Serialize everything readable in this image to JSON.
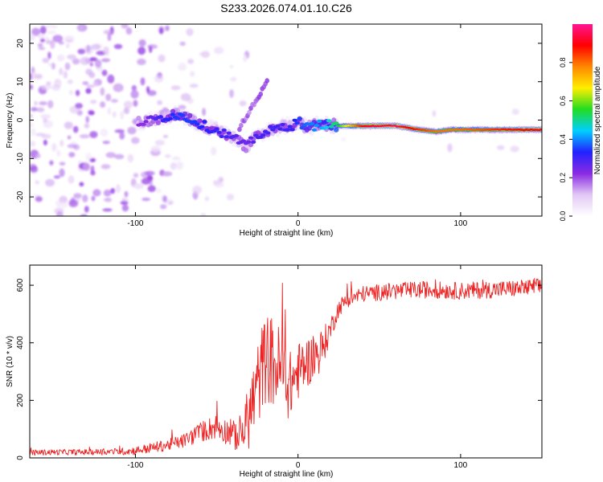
{
  "title": "S233.2026.074.01.10.C26",
  "chart_data": [
    {
      "type": "heatmap",
      "xlabel": "Height of straight line (km)",
      "ylabel": "Frequency (Hz)",
      "xlim": [
        -165,
        150
      ],
      "ylim": [
        -25,
        25
      ],
      "xticks": [
        -100,
        0,
        100
      ],
      "yticks": [
        -20,
        -10,
        0,
        10,
        20
      ],
      "colorbar": {
        "label": "Normalized spectral amplitude",
        "range": [
          0,
          1
        ],
        "ticks": [
          0.0,
          0.2,
          0.4,
          0.6,
          0.8
        ],
        "tick_labels": [
          "0.0",
          "0.2",
          "0.4",
          "0.6",
          "0.8"
        ],
        "colors": [
          "#ffffff",
          "#e2c8f5",
          "#8a2be2",
          "#2222ff",
          "#00cfff",
          "#22dd22",
          "#ffee00",
          "#ff8800",
          "#ff0000",
          "#ff1493"
        ]
      },
      "ridge": {
        "x": [
          -95,
          -85,
          -75,
          -65,
          -55,
          -45,
          -38,
          -32,
          -25,
          -15,
          -8,
          -3,
          0,
          5,
          15,
          25,
          40,
          60,
          75,
          85,
          95,
          110,
          130,
          150
        ],
        "freq_hz": [
          -0.5,
          0.5,
          1.5,
          0,
          -2,
          -3.5,
          -5,
          -7,
          -4,
          -2.5,
          -1.5,
          -1.5,
          0,
          -2,
          -1,
          -1.5,
          -1.5,
          -1.5,
          -2.5,
          -3,
          -2.5,
          -2.5,
          -2.5,
          -2.5
        ],
        "amplitude": [
          0.22,
          0.3,
          0.35,
          0.35,
          0.32,
          0.3,
          0.28,
          0.25,
          0.3,
          0.3,
          0.3,
          0.32,
          0.35,
          0.38,
          0.42,
          0.55,
          0.9,
          0.95,
          0.85,
          0.8,
          0.8,
          0.82,
          0.88,
          0.9
        ]
      }
    },
    {
      "type": "line",
      "xlabel": "Height of straight line (km)",
      "ylabel": "SNR (10 * v/v)",
      "xlim": [
        -165,
        150
      ],
      "ylim": [
        0,
        670
      ],
      "xticks": [
        -100,
        0,
        100
      ],
      "yticks": [
        0,
        200,
        400,
        600
      ],
      "color": "#ee2222",
      "series": [
        {
          "name": "SNR",
          "x": [
            -165,
            -150,
            -130,
            -110,
            -100,
            -90,
            -80,
            -70,
            -60,
            -55,
            -50,
            -45,
            -40,
            -35,
            -30,
            -25,
            -20,
            -15,
            -10,
            -5,
            0,
            5,
            10,
            15,
            20,
            25,
            30,
            40,
            60,
            80,
            100,
            120,
            140,
            150
          ],
          "y": [
            18,
            20,
            20,
            22,
            25,
            35,
            45,
            60,
            90,
            100,
            110,
            95,
            80,
            75,
            150,
            250,
            350,
            330,
            300,
            250,
            300,
            330,
            350,
            380,
            450,
            520,
            550,
            570,
            580,
            585,
            580,
            585,
            590,
            595
          ],
          "noise_amplitude": [
            10,
            10,
            10,
            12,
            15,
            18,
            20,
            25,
            35,
            40,
            45,
            45,
            50,
            60,
            120,
            150,
            160,
            160,
            150,
            120,
            100,
            90,
            80,
            70,
            40,
            30,
            28,
            28,
            30,
            30,
            30,
            30,
            30,
            30
          ]
        }
      ]
    }
  ]
}
